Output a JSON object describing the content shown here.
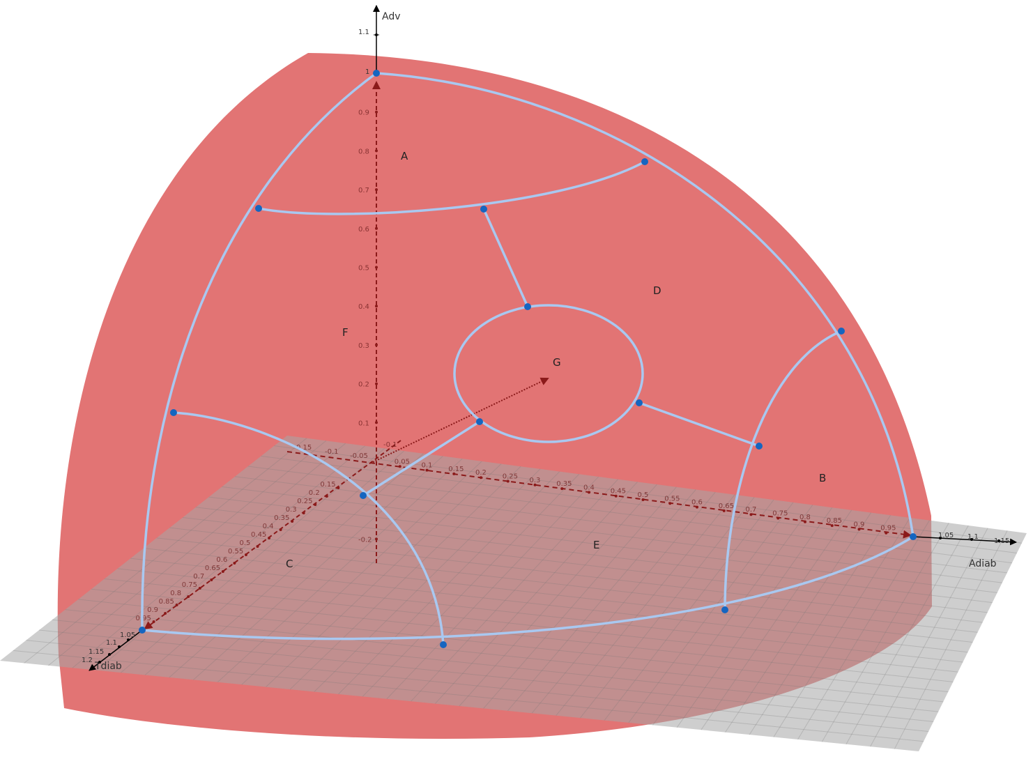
{
  "axes": {
    "vertical": "Adv",
    "right": "Adiab",
    "left": "Tdiab"
  },
  "regions": [
    "A",
    "B",
    "C",
    "D",
    "E",
    "F",
    "G"
  ],
  "vertical_ticks": {
    "above": [
      "1.1",
      "1"
    ],
    "inner": [
      "0.9",
      "0.8",
      "0.7",
      "0.6",
      "0.5",
      "0.4",
      "0.3",
      "0.2",
      "0.1",
      "-0.2"
    ]
  },
  "right_ticks": {
    "inner": [
      "0.05",
      "0.1",
      "0.15",
      "0.2",
      "0.25",
      "0.3",
      "0.35",
      "0.4",
      "0.45",
      "0.5",
      "0.55",
      "0.6",
      "0.65",
      "0.7",
      "0.75",
      "0.8",
      "0.85",
      "0.9",
      "0.95"
    ],
    "outer": [
      "1.05",
      "1.1",
      "1.15"
    ]
  },
  "left_ticks": {
    "inner": [
      "0.15",
      "0.2",
      "0.25",
      "0.3",
      "0.35",
      "0.4",
      "0.45",
      "0.5",
      "0.55",
      "0.6",
      "0.65",
      "0.7",
      "0.75",
      "0.8",
      "0.85",
      "0.9",
      "0.95"
    ],
    "outer": [
      "1.05",
      "1.1",
      "1.15",
      "1.2"
    ]
  },
  "back_ticks": [
    "0.15",
    "-0.1",
    "-0.05",
    "-0.1"
  ],
  "colors": {
    "surface": "#e27474",
    "plane": "#9a9a9a",
    "boundary": "#a9c8f0",
    "vertex": "#1565c0",
    "axis_dark": "#8b1a1a"
  }
}
